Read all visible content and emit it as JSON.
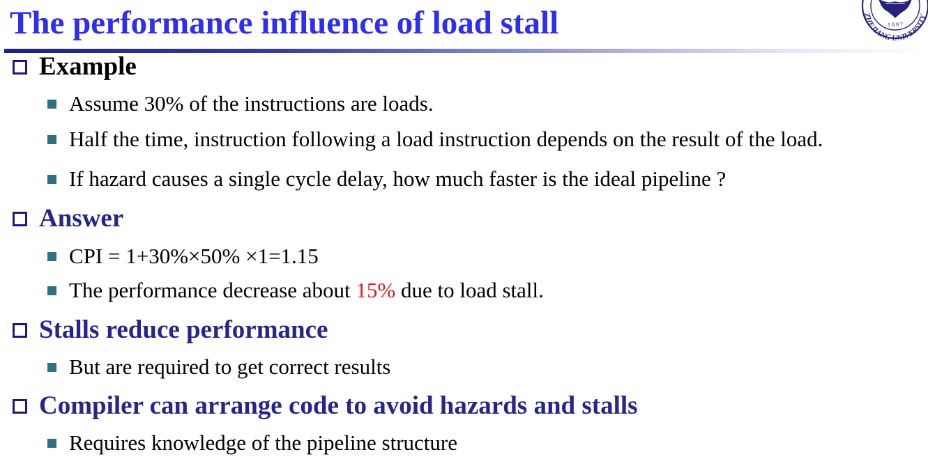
{
  "slide": {
    "title": "The performance influence of load stall",
    "logo": {
      "icon": "zhejiang-university-seal-icon",
      "year": "1 8 9 7",
      "text": "ZHEJIANG UNIVERSITY"
    }
  },
  "sections": [
    {
      "heading": "Example",
      "color": "#000000",
      "items": [
        {
          "text": "Assume 30% of the instructions are loads."
        },
        {
          "text": "Half the time, instruction following a load instruction depends on the result of the load."
        },
        {
          "text": "If hazard causes a single cycle delay, how much faster is the ideal pipeline ?"
        }
      ]
    },
    {
      "heading": "Answer",
      "color": "#25258c",
      "items": [
        {
          "text": "CPI = 1+30%×50% ×1=1.15"
        },
        {
          "prefix": "The performance decrease about ",
          "highlight": "15%",
          "suffix": " due to load stall.",
          "highlight_color": "#e0161d"
        }
      ]
    },
    {
      "heading": "Stalls reduce performance",
      "color": "#25258c",
      "items": [
        {
          "text": "But are required to get correct results"
        }
      ]
    },
    {
      "heading": "Compiler can arrange code to avoid hazards and stalls",
      "color": "#25258c",
      "items": [
        {
          "text": "Requires knowledge of the pipeline structure"
        }
      ]
    }
  ],
  "colors": {
    "title": "#2e2ef0",
    "bullet_square": "#2e7280",
    "heading_box": "#1a1a7a"
  }
}
